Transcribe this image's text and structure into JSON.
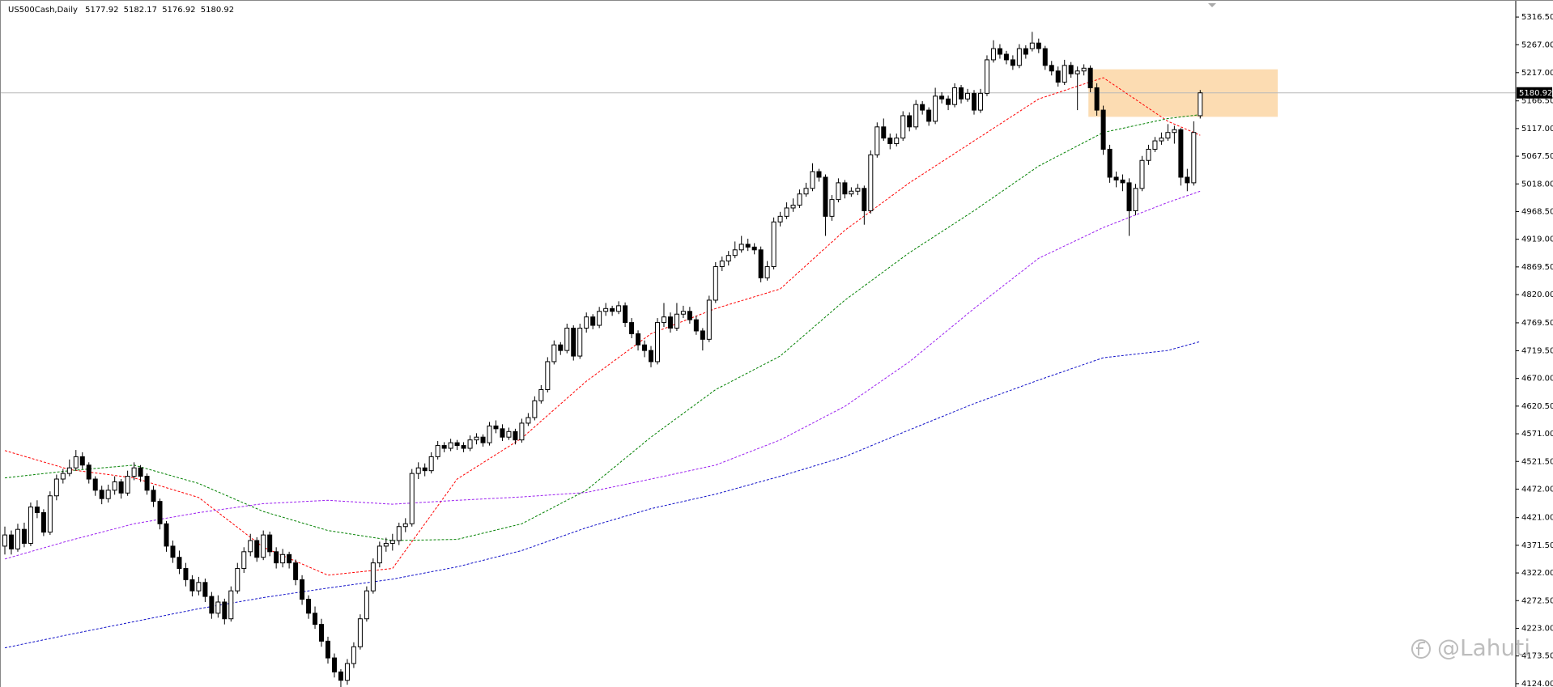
{
  "chart_data": {
    "type": "candlestick",
    "title": "US500Cash,Daily",
    "header_ohlc": [
      5177.92,
      5182.17,
      5176.92,
      5180.92
    ],
    "up_color": "#ffffff",
    "down_color": "#000000",
    "ylim": [
      4118,
      5347
    ],
    "yticks": [
      {
        "value": 5316.5,
        "label": "5316.50"
      },
      {
        "value": 5267,
        "label": "5267.00"
      },
      {
        "value": 5217,
        "label": "5217.00"
      },
      {
        "value": 5166.5,
        "label": "5166.50"
      },
      {
        "value": 5117,
        "label": "5117.00"
      },
      {
        "value": 5067.5,
        "label": "5067.50"
      },
      {
        "value": 5018,
        "label": "5018.00"
      },
      {
        "value": 4968.5,
        "label": "4968.50"
      },
      {
        "value": 4919,
        "label": "4919.00"
      },
      {
        "value": 4869.5,
        "label": "4869.50"
      },
      {
        "value": 4820,
        "label": "4820.00"
      },
      {
        "value": 4769.5,
        "label": "4769.50"
      },
      {
        "value": 4719.5,
        "label": "4719.50"
      },
      {
        "value": 4670,
        "label": "4670.00"
      },
      {
        "value": 4620.5,
        "label": "4620.50"
      },
      {
        "value": 4571,
        "label": "4571.00"
      },
      {
        "value": 4521.5,
        "label": "4521.50"
      },
      {
        "value": 4472,
        "label": "4472.00"
      },
      {
        "value": 4421,
        "label": "4421.00"
      },
      {
        "value": 4371.5,
        "label": "4371.50"
      },
      {
        "value": 4322,
        "label": "4322.00"
      },
      {
        "value": 4272.5,
        "label": "4272.50"
      },
      {
        "value": 4223,
        "label": "4223.00"
      },
      {
        "value": 4173.5,
        "label": "4173.50"
      },
      {
        "value": 4124,
        "label": "4124.00"
      }
    ],
    "zone": {
      "x": [
        167.7,
        197
      ],
      "y": [
        5138,
        5223
      ],
      "color": "#fcdcb2"
    },
    "watermark": "@Lahuti",
    "series": [
      {
        "color": "#ff0000",
        "x": [
          0,
          10,
          20,
          30,
          40,
          50,
          60,
          70,
          80,
          90,
          100,
          110,
          120,
          130,
          140,
          150,
          160,
          170,
          180,
          185
        ],
        "values": [
          4541,
          4507,
          4492,
          4457,
          4368,
          4318,
          4330,
          4490,
          4563,
          4665,
          4750,
          4795,
          4830,
          4935,
          5020,
          5095,
          5170,
          5208,
          5130,
          5105
        ]
      },
      {
        "color": "#008000",
        "x": [
          0,
          10,
          20,
          30,
          40,
          50,
          60,
          70,
          80,
          90,
          100,
          110,
          120,
          130,
          140,
          150,
          160,
          170,
          180,
          185
        ],
        "values": [
          4492,
          4505,
          4515,
          4482,
          4432,
          4398,
          4380,
          4382,
          4410,
          4470,
          4565,
          4650,
          4710,
          4810,
          4895,
          4970,
          5050,
          5110,
          5135,
          5142
        ]
      },
      {
        "color": "#9b1ff0",
        "x": [
          0,
          10,
          20,
          30,
          40,
          50,
          60,
          70,
          80,
          90,
          100,
          110,
          120,
          130,
          140,
          150,
          160,
          170,
          180,
          185
        ],
        "values": [
          4347,
          4380,
          4410,
          4430,
          4446,
          4452,
          4445,
          4452,
          4458,
          4466,
          4490,
          4515,
          4560,
          4620,
          4700,
          4795,
          4885,
          4940,
          4985,
          5005
        ]
      },
      {
        "color": "#1010c8",
        "x": [
          0,
          10,
          20,
          30,
          40,
          50,
          60,
          70,
          80,
          90,
          100,
          110,
          120,
          130,
          140,
          150,
          160,
          170,
          180,
          185
        ],
        "values": [
          4188,
          4212,
          4235,
          4258,
          4278,
          4295,
          4311,
          4333,
          4362,
          4403,
          4437,
          4463,
          4495,
          4530,
          4578,
          4625,
          4667,
          4707,
          4720,
          4736
        ]
      }
    ],
    "ohlc": [
      [
        4370,
        4405,
        4355,
        4390
      ],
      [
        4390,
        4398,
        4355,
        4365
      ],
      [
        4365,
        4410,
        4360,
        4400
      ],
      [
        4400,
        4412,
        4368,
        4375
      ],
      [
        4375,
        4448,
        4370,
        4440
      ],
      [
        4440,
        4452,
        4420,
        4430
      ],
      [
        4430,
        4436,
        4388,
        4395
      ],
      [
        4395,
        4468,
        4390,
        4460
      ],
      [
        4460,
        4498,
        4452,
        4490
      ],
      [
        4490,
        4508,
        4482,
        4500
      ],
      [
        4500,
        4525,
        4495,
        4510
      ],
      [
        4510,
        4542,
        4505,
        4530
      ],
      [
        4530,
        4538,
        4508,
        4515
      ],
      [
        4515,
        4520,
        4482,
        4490
      ],
      [
        4490,
        4495,
        4460,
        4470
      ],
      [
        4470,
        4478,
        4445,
        4455
      ],
      [
        4455,
        4480,
        4448,
        4470
      ],
      [
        4470,
        4495,
        4462,
        4485
      ],
      [
        4485,
        4490,
        4455,
        4465
      ],
      [
        4465,
        4505,
        4460,
        4495
      ],
      [
        4495,
        4520,
        4488,
        4510
      ],
      [
        4510,
        4515,
        4485,
        4495
      ],
      [
        4495,
        4500,
        4462,
        4470
      ],
      [
        4470,
        4478,
        4440,
        4450
      ],
      [
        4450,
        4455,
        4400,
        4410
      ],
      [
        4410,
        4415,
        4360,
        4370
      ],
      [
        4370,
        4380,
        4340,
        4350
      ],
      [
        4350,
        4362,
        4320,
        4330
      ],
      [
        4330,
        4340,
        4298,
        4310
      ],
      [
        4310,
        4318,
        4280,
        4290
      ],
      [
        4290,
        4315,
        4282,
        4305
      ],
      [
        4305,
        4312,
        4270,
        4280
      ],
      [
        4280,
        4288,
        4240,
        4250
      ],
      [
        4250,
        4282,
        4242,
        4270
      ],
      [
        4270,
        4276,
        4230,
        4240
      ],
      [
        4240,
        4298,
        4235,
        4290
      ],
      [
        4290,
        4340,
        4285,
        4330
      ],
      [
        4330,
        4368,
        4322,
        4360
      ],
      [
        4360,
        4392,
        4352,
        4380
      ],
      [
        4380,
        4386,
        4342,
        4350
      ],
      [
        4350,
        4398,
        4345,
        4390
      ],
      [
        4390,
        4396,
        4352,
        4360
      ],
      [
        4360,
        4368,
        4330,
        4340
      ],
      [
        4340,
        4365,
        4332,
        4355
      ],
      [
        4355,
        4360,
        4330,
        4340
      ],
      [
        4340,
        4346,
        4300,
        4310
      ],
      [
        4310,
        4318,
        4265,
        4275
      ],
      [
        4275,
        4282,
        4240,
        4250
      ],
      [
        4250,
        4262,
        4222,
        4230
      ],
      [
        4230,
        4240,
        4190,
        4200
      ],
      [
        4200,
        4208,
        4160,
        4170
      ],
      [
        4170,
        4178,
        4135,
        4145
      ],
      [
        4145,
        4150,
        4115,
        4130
      ],
      [
        4130,
        4168,
        4122,
        4160
      ],
      [
        4160,
        4198,
        4152,
        4190
      ],
      [
        4190,
        4248,
        4185,
        4240
      ],
      [
        4240,
        4298,
        4235,
        4290
      ],
      [
        4290,
        4348,
        4285,
        4340
      ],
      [
        4340,
        4378,
        4332,
        4370
      ],
      [
        4370,
        4385,
        4360,
        4375
      ],
      [
        4375,
        4392,
        4362,
        4380
      ],
      [
        4380,
        4412,
        4372,
        4405
      ],
      [
        4405,
        4420,
        4395,
        4410
      ],
      [
        4410,
        4508,
        4405,
        4500
      ],
      [
        4500,
        4520,
        4490,
        4510
      ],
      [
        4510,
        4518,
        4495,
        4505
      ],
      [
        4505,
        4538,
        4500,
        4530
      ],
      [
        4530,
        4558,
        4525,
        4550
      ],
      [
        4550,
        4556,
        4538,
        4545
      ],
      [
        4545,
        4562,
        4540,
        4555
      ],
      [
        4555,
        4560,
        4542,
        4550
      ],
      [
        4550,
        4556,
        4538,
        4545
      ],
      [
        4545,
        4568,
        4540,
        4560
      ],
      [
        4560,
        4572,
        4552,
        4565
      ],
      [
        4565,
        4570,
        4548,
        4555
      ],
      [
        4555,
        4592,
        4550,
        4585
      ],
      [
        4585,
        4595,
        4572,
        4580
      ],
      [
        4580,
        4588,
        4558,
        4565
      ],
      [
        4565,
        4582,
        4560,
        4575
      ],
      [
        4575,
        4580,
        4552,
        4560
      ],
      [
        4560,
        4598,
        4555,
        4590
      ],
      [
        4590,
        4608,
        4585,
        4600
      ],
      [
        4600,
        4638,
        4595,
        4630
      ],
      [
        4630,
        4658,
        4625,
        4650
      ],
      [
        4650,
        4708,
        4645,
        4700
      ],
      [
        4700,
        4738,
        4695,
        4730
      ],
      [
        4730,
        4735,
        4712,
        4720
      ],
      [
        4720,
        4768,
        4715,
        4760
      ],
      [
        4760,
        4765,
        4702,
        4710
      ],
      [
        4710,
        4768,
        4705,
        4760
      ],
      [
        4760,
        4788,
        4752,
        4780
      ],
      [
        4780,
        4785,
        4758,
        4765
      ],
      [
        4765,
        4798,
        4760,
        4790
      ],
      [
        4790,
        4805,
        4782,
        4795
      ],
      [
        4795,
        4800,
        4782,
        4790
      ],
      [
        4790,
        4808,
        4785,
        4800
      ],
      [
        4800,
        4806,
        4762,
        4770
      ],
      [
        4770,
        4778,
        4742,
        4750
      ],
      [
        4750,
        4756,
        4720,
        4730
      ],
      [
        4730,
        4738,
        4708,
        4720
      ],
      [
        4720,
        4728,
        4690,
        4700
      ],
      [
        4700,
        4778,
        4695,
        4770
      ],
      [
        4770,
        4805,
        4762,
        4780
      ],
      [
        4780,
        4788,
        4752,
        4760
      ],
      [
        4760,
        4805,
        4755,
        4785
      ],
      [
        4785,
        4800,
        4778,
        4790
      ],
      [
        4790,
        4798,
        4768,
        4775
      ],
      [
        4775,
        4782,
        4748,
        4755
      ],
      [
        4755,
        4760,
        4720,
        4740
      ],
      [
        4740,
        4818,
        4735,
        4810
      ],
      [
        4810,
        4878,
        4805,
        4870
      ],
      [
        4870,
        4888,
        4862,
        4880
      ],
      [
        4880,
        4898,
        4872,
        4890
      ],
      [
        4890,
        4915,
        4885,
        4900
      ],
      [
        4900,
        4925,
        4895,
        4910
      ],
      [
        4910,
        4920,
        4898,
        4905
      ],
      [
        4905,
        4912,
        4892,
        4900
      ],
      [
        4900,
        4906,
        4842,
        4850
      ],
      [
        4850,
        4880,
        4845,
        4870
      ],
      [
        4870,
        4958,
        4865,
        4950
      ],
      [
        4950,
        4968,
        4942,
        4960
      ],
      [
        4960,
        4985,
        4955,
        4975
      ],
      [
        4975,
        4992,
        4968,
        4980
      ],
      [
        4980,
        5008,
        4975,
        5000
      ],
      [
        5000,
        5020,
        4995,
        5010
      ],
      [
        5010,
        5055,
        5005,
        5040
      ],
      [
        5040,
        5045,
        5022,
        5030
      ],
      [
        5030,
        5035,
        4925,
        4960
      ],
      [
        4960,
        4998,
        4952,
        4990
      ],
      [
        4990,
        5028,
        4985,
        5020
      ],
      [
        5020,
        5025,
        4992,
        5000
      ],
      [
        5000,
        5012,
        4995,
        5005
      ],
      [
        5005,
        5018,
        4998,
        5010
      ],
      [
        5010,
        5015,
        4945,
        4970
      ],
      [
        4970,
        5078,
        4965,
        5070
      ],
      [
        5070,
        5128,
        5065,
        5120
      ],
      [
        5120,
        5135,
        5095,
        5100
      ],
      [
        5100,
        5108,
        5080,
        5090
      ],
      [
        5090,
        5108,
        5085,
        5100
      ],
      [
        5100,
        5148,
        5095,
        5140
      ],
      [
        5140,
        5146,
        5112,
        5120
      ],
      [
        5120,
        5168,
        5115,
        5160
      ],
      [
        5160,
        5166,
        5142,
        5150
      ],
      [
        5150,
        5155,
        5122,
        5130
      ],
      [
        5130,
        5190,
        5125,
        5175
      ],
      [
        5175,
        5182,
        5162,
        5170
      ],
      [
        5170,
        5176,
        5150,
        5160
      ],
      [
        5160,
        5198,
        5155,
        5190
      ],
      [
        5190,
        5195,
        5162,
        5170
      ],
      [
        5170,
        5188,
        5165,
        5180
      ],
      [
        5180,
        5186,
        5142,
        5150
      ],
      [
        5150,
        5188,
        5145,
        5180
      ],
      [
        5180,
        5248,
        5175,
        5240
      ],
      [
        5240,
        5275,
        5235,
        5260
      ],
      [
        5260,
        5268,
        5242,
        5250
      ],
      [
        5250,
        5256,
        5232,
        5240
      ],
      [
        5240,
        5248,
        5222,
        5230
      ],
      [
        5230,
        5268,
        5225,
        5260
      ],
      [
        5260,
        5266,
        5242,
        5250
      ],
      [
        5260,
        5290,
        5255,
        5270
      ],
      [
        5270,
        5278,
        5252,
        5260
      ],
      [
        5260,
        5265,
        5222,
        5230
      ],
      [
        5230,
        5238,
        5212,
        5220
      ],
      [
        5220,
        5228,
        5192,
        5200
      ],
      [
        5200,
        5240,
        5195,
        5230
      ],
      [
        5230,
        5236,
        5208,
        5215
      ],
      [
        5215,
        5228,
        5150,
        5220
      ],
      [
        5220,
        5232,
        5212,
        5225
      ],
      [
        5225,
        5230,
        5182,
        5190
      ],
      [
        5190,
        5198,
        5140,
        5150
      ],
      [
        5150,
        5158,
        5070,
        5080
      ],
      [
        5080,
        5088,
        5020,
        5030
      ],
      [
        5030,
        5040,
        5012,
        5025
      ],
      [
        5025,
        5035,
        5005,
        5020
      ],
      [
        5020,
        5028,
        4925,
        4970
      ],
      [
        4970,
        5018,
        4962,
        5010
      ],
      [
        5010,
        5068,
        5005,
        5060
      ],
      [
        5060,
        5088,
        5052,
        5080
      ],
      [
        5080,
        5102,
        5075,
        5095
      ],
      [
        5095,
        5110,
        5088,
        5100
      ],
      [
        5100,
        5125,
        5095,
        5110
      ],
      [
        5110,
        5122,
        5090,
        5115
      ],
      [
        5115,
        5118,
        5015,
        5030
      ],
      [
        5030,
        5045,
        5005,
        5020
      ],
      [
        5020,
        5130,
        5015,
        5110
      ],
      [
        5140,
        5186,
        5135,
        5180.92
      ]
    ]
  }
}
